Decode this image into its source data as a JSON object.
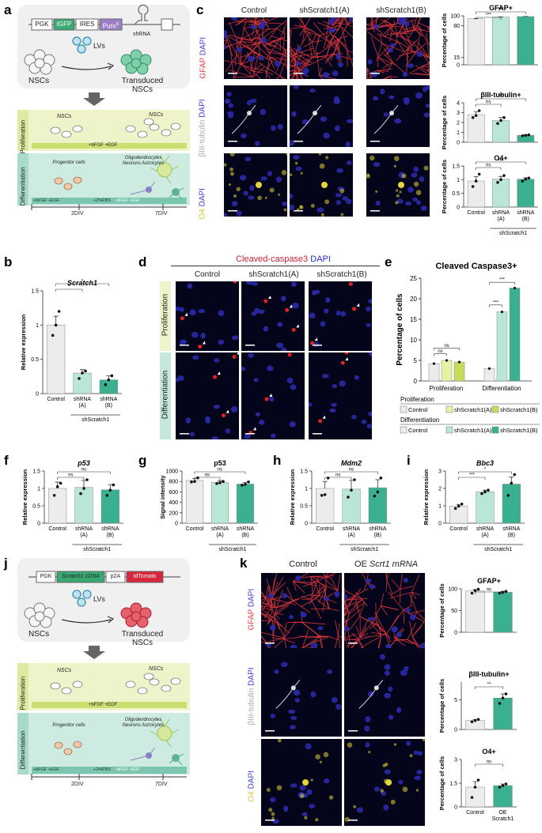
{
  "panels": {
    "a": "a",
    "b": "b",
    "c": "c",
    "d": "d",
    "e": "e",
    "f": "f",
    "g": "g",
    "h": "h",
    "i": "i",
    "j": "j",
    "k": "k"
  },
  "a": {
    "construct": [
      "PGK",
      "tGFP",
      "IRES",
      "Puro",
      "shRNA"
    ],
    "puro_sup": "R",
    "lvs": "LVs",
    "nscs": "NSCs",
    "transduced": "Transduced NSCs",
    "proliferation": "Proliferation",
    "nscs_label": "NSCs",
    "prolif_bar": "+bFGF +EGF",
    "differentiation": "Differentiation",
    "progenitor": "Progenitor cells",
    "mature": "Oligodendrocytes Neurons Astrocytes",
    "diff_bar_left": "+bFGF +EGF",
    "diff_bar_mid": "+2%FBS",
    "diff_bar_right": "-bFGF -EGF",
    "div2": "2DIV",
    "div7": "7DIV",
    "colors": {
      "tgfp": "#3aa872",
      "puro": "#9b7fc8",
      "prolif_bg": "#eef3c9",
      "diff_bg": "#b9e3d6",
      "bar": "#c9df6f",
      "diffbar": "#7cc6b0",
      "nsc": "#e9e9e9",
      "trans": "#74c6a2"
    }
  },
  "b": {
    "title": "Scratch1",
    "ylabel": "Relative expression",
    "groups": [
      "Control",
      "shRNA (A)",
      "shRNA (B)"
    ],
    "group_label": "shScratch1",
    "sig": [
      "*",
      "*"
    ]
  },
  "c": {
    "cols": [
      "Control",
      "shScratch1(A)",
      "shScratch1(B)"
    ],
    "rows": [
      {
        "marker": "GFAP",
        "dapi": "DAPI",
        "color": "#e8383d"
      },
      {
        "marker": "βIII-tubulin",
        "dapi": "DAPI",
        "color": "#b9b9b9"
      },
      {
        "marker": "O4",
        "dapi": "DAPI",
        "color": "#e3d33c"
      }
    ],
    "charts": [
      {
        "title": "GFAP+",
        "ylabel": "Percentage of cells",
        "sig": [
          "***",
          "***"
        ]
      },
      {
        "title": "βIII-tubulin+",
        "ylabel": "Percentage of cells",
        "sig": [
          "ns",
          "**"
        ]
      },
      {
        "title": "O4+",
        "ylabel": "Percentage of cells",
        "sig": [
          "ns",
          "ns"
        ]
      }
    ],
    "xlabels": [
      "Control",
      "shRNA (A)",
      "shRNA (B)"
    ],
    "group_label": "shScratch1"
  },
  "d": {
    "title_red": "Cleaved-caspase3",
    "title_blue": "DAPI",
    "cols": [
      "Control",
      "shScratch1(A)",
      "shScratch1(B)"
    ],
    "rows": [
      "Proliferation",
      "Differentiation"
    ]
  },
  "e": {
    "title": "Cleaved Caspase3+",
    "ylabel": "Percentage of cells",
    "groups": [
      "Proliferation",
      "Differentiation"
    ],
    "sig": [
      "ns",
      "ns",
      "***",
      "***"
    ],
    "legend_prolif": "Proliferation",
    "legend_diff": "Differentiation",
    "legend_items": [
      "Control",
      "shScratch1(A)",
      "shScratch1(B)"
    ]
  },
  "f": {
    "title": "p53",
    "ylabel": "Relative expression",
    "groups": [
      "Control",
      "shRNA (A)",
      "shRNA (B)"
    ],
    "group_label": "shScratch1",
    "sig": [
      "ns",
      "ns"
    ]
  },
  "g": {
    "title": "p53",
    "ylabel": "Signal intensity",
    "groups": [
      "Control",
      "shRNA (A)",
      "shRNA (B)"
    ],
    "group_label": "shScratch1",
    "sig": [
      "ns",
      "ns"
    ]
  },
  "h": {
    "title": "Mdm2",
    "ylabel": "Relative expression",
    "groups": [
      "Control",
      "shRNA (A)",
      "shRNA (B)"
    ],
    "group_label": "shScratch1",
    "sig": [
      "ns",
      "ns"
    ]
  },
  "i": {
    "title": "Bbc3",
    "ylabel": "Relative expression",
    "groups": [
      "Control",
      "shRNA (A)",
      "shRNA (B)"
    ],
    "group_label": "shScratch1",
    "sig": [
      "***",
      "*"
    ]
  },
  "j": {
    "construct": [
      "PGK",
      "Scratch1 cDNA",
      "p2A",
      "tdTomato"
    ],
    "lvs": "LVs",
    "nscs": "NSCs",
    "transduced": "Transduced NSCs",
    "proliferation": "Proliferation",
    "nscs_label": "NSCs",
    "prolif_bar": "+bFGF +EGF",
    "differentiation": "Differentiation",
    "progenitor": "Progenitor cells",
    "mature": "Oligodendrocytes Neurons Astrocytes",
    "diff_bar_left": "+bFGF +EGF",
    "diff_bar_mid": "+2%FBS",
    "diff_bar_right": "-bFGF -EGF",
    "div2": "2DIV",
    "div7": "7DIV"
  },
  "k": {
    "cols": [
      "Control",
      "OE"
    ],
    "oe_italic": "Scrt1 mRNA",
    "rows": [
      {
        "marker": "GFAP",
        "dapi": "DAPI",
        "color": "#e8383d"
      },
      {
        "marker": "βIII-tubulin",
        "dapi": "DAPI",
        "color": "#b9b9b9"
      },
      {
        "marker": "O4",
        "dapi": "DAPI",
        "color": "#e3d33c"
      }
    ],
    "charts": [
      {
        "title": "GFAP+",
        "ylabel": "Percentage of cells",
        "sig": [
          "ns"
        ]
      },
      {
        "title": "βIII-tubulin+",
        "ylabel": "Percentage of cells",
        "sig": [
          "**"
        ]
      },
      {
        "title": "O4+",
        "ylabel": "Percentage of cells",
        "sig": [
          "ns"
        ]
      }
    ],
    "xlabels": [
      "Control",
      "OE Scratch1"
    ]
  },
  "chart_data": [
    {
      "id": "b",
      "type": "bar",
      "categories": [
        "Control",
        "shRNA (A)",
        "shRNA (B)"
      ],
      "values": [
        1.0,
        0.3,
        0.2
      ],
      "errors": [
        0.13,
        0.05,
        0.06
      ],
      "points": [
        [
          0.85,
          1.0,
          1.2
        ],
        [
          0.22,
          0.3,
          0.33
        ],
        [
          0.13,
          0.2,
          0.26
        ]
      ],
      "ylim": [
        0,
        1.5
      ],
      "yticks": [
        0,
        0.5,
        1.0,
        1.5
      ],
      "title": "Scratch1",
      "ylabel": "Relative expression",
      "colors": [
        "#ececec",
        "#b9e6d5",
        "#3ab090"
      ]
    },
    {
      "id": "c1",
      "type": "bar",
      "categories": [
        "Control",
        "shRNA (A)",
        "shRNA (B)"
      ],
      "values": [
        94,
        97.5,
        98.5
      ],
      "errors": [
        0.6,
        0.5,
        0.3
      ],
      "ylim": [
        0,
        100
      ],
      "yticks": [
        0,
        15,
        80,
        100
      ],
      "title": "GFAP+",
      "colors": [
        "#ececec",
        "#b9e6d5",
        "#3ab090"
      ]
    },
    {
      "id": "c2",
      "type": "bar",
      "categories": [
        "Control",
        "shRNA (A)",
        "shRNA (B)"
      ],
      "values": [
        2.8,
        2.2,
        0.7
      ],
      "errors": [
        0.3,
        0.3,
        0.06
      ],
      "points": [
        [
          2.5,
          2.7,
          3.2
        ],
        [
          1.9,
          2.2,
          2.5
        ],
        [
          0.65,
          0.7,
          0.75
        ]
      ],
      "ylim": [
        0,
        4
      ],
      "yticks": [
        0,
        1,
        2,
        3,
        4
      ],
      "title": "βIII-tubulin+",
      "colors": [
        "#ececec",
        "#b9e6d5",
        "#3ab090"
      ]
    },
    {
      "id": "c3",
      "type": "bar",
      "categories": [
        "Control",
        "shRNA (A)",
        "shRNA (B)"
      ],
      "values": [
        0.95,
        1.02,
        1.02
      ],
      "errors": [
        0.16,
        0.1,
        0.05
      ],
      "points": [
        [
          0.75,
          0.95,
          1.2
        ],
        [
          0.9,
          1.0,
          1.15
        ],
        [
          0.95,
          1.02,
          1.06
        ]
      ],
      "ylim": [
        0,
        1.5
      ],
      "yticks": [
        0,
        0.5,
        1.0,
        1.5
      ],
      "title": "O4+",
      "colors": [
        "#ececec",
        "#b9e6d5",
        "#3ab090"
      ]
    },
    {
      "id": "e",
      "type": "bar",
      "categories": [
        "Proliferation",
        "Differentiation"
      ],
      "series": [
        {
          "name": "Control",
          "values": [
            4.2,
            3.0
          ]
        },
        {
          "name": "shScratch1(A)",
          "values": [
            5.0,
            16.8
          ]
        },
        {
          "name": "shScratch1(B)",
          "values": [
            4.6,
            22.6
          ]
        }
      ],
      "ylim": [
        0,
        25
      ],
      "yticks": [
        0,
        5,
        10,
        15,
        20,
        25
      ],
      "title": "Cleaved Caspase3+",
      "ylabel": "Percentage of cells"
    },
    {
      "id": "f",
      "type": "bar",
      "categories": [
        "Control",
        "shRNA (A)",
        "shRNA (B)"
      ],
      "values": [
        1.0,
        1.03,
        0.96
      ],
      "errors": [
        0.18,
        0.2,
        0.15
      ],
      "points": [
        [
          0.8,
          1.05,
          1.15
        ],
        [
          0.85,
          1.0,
          1.25
        ],
        [
          0.8,
          0.95,
          1.1
        ]
      ],
      "ylim": [
        0,
        1.5
      ],
      "yticks": [
        0,
        0.5,
        1.0,
        1.5
      ],
      "title": "p53",
      "ylabel": "Relative expression",
      "colors": [
        "#ececec",
        "#b9e6d5",
        "#3ab090"
      ]
    },
    {
      "id": "g",
      "type": "bar",
      "categories": [
        "Control",
        "shRNA (A)",
        "shRNA (B)"
      ],
      "values": [
        820,
        780,
        750
      ],
      "errors": [
        40,
        35,
        30
      ],
      "points": [
        [
          790,
          800,
          870
        ],
        [
          760,
          775,
          800
        ],
        [
          730,
          745,
          790
        ]
      ],
      "ylim": [
        0,
        1000
      ],
      "yticks": [
        0,
        200,
        400,
        600,
        800,
        1000
      ],
      "title": "p53",
      "ylabel": "Signal intensity",
      "colors": [
        "#ececec",
        "#b9e6d5",
        "#3ab090"
      ]
    },
    {
      "id": "h",
      "type": "bar",
      "categories": [
        "Control",
        "shRNA (A)",
        "shRNA (B)"
      ],
      "values": [
        1.0,
        0.98,
        1.02
      ],
      "errors": [
        0.2,
        0.25,
        0.23
      ],
      "points": [
        [
          0.8,
          0.82,
          1.3
        ],
        [
          0.75,
          0.95,
          1.25
        ],
        [
          0.78,
          0.9,
          1.3
        ]
      ],
      "ylim": [
        0,
        1.5
      ],
      "yticks": [
        0,
        0.5,
        1.0,
        1.5
      ],
      "title": "Mdm2",
      "ylabel": "Relative expression",
      "colors": [
        "#ececec",
        "#b9e6d5",
        "#3ab090"
      ]
    },
    {
      "id": "i",
      "type": "bar",
      "categories": [
        "Control",
        "shRNA (A)",
        "shRNA (B)"
      ],
      "values": [
        0.98,
        1.8,
        2.25
      ],
      "errors": [
        0.1,
        0.1,
        0.4
      ],
      "points": [
        [
          0.85,
          0.98,
          1.1
        ],
        [
          1.7,
          1.8,
          1.9
        ],
        [
          1.6,
          2.3,
          2.8
        ]
      ],
      "ylim": [
        0,
        3
      ],
      "yticks": [
        0,
        1,
        2,
        3
      ],
      "title": "Bbc3",
      "ylabel": "Relative expression",
      "colors": [
        "#ececec",
        "#b9e6d5",
        "#3ab090"
      ]
    },
    {
      "id": "k1",
      "type": "bar",
      "categories": [
        "Control",
        "OE Scratch1"
      ],
      "values": [
        95,
        92
      ],
      "errors": [
        3,
        2
      ],
      "points": [
        [
          90,
          96,
          99
        ],
        [
          90,
          92,
          94
        ]
      ],
      "ylim": [
        0,
        100
      ],
      "yticks": [
        0,
        50,
        100
      ],
      "title": "GFAP+",
      "colors": [
        "#ececec",
        "#3ab090"
      ]
    },
    {
      "id": "k2",
      "type": "bar",
      "categories": [
        "Control",
        "OE Scratch1"
      ],
      "values": [
        1.5,
        5.3
      ],
      "errors": [
        0.2,
        0.7
      ],
      "points": [
        [
          1.3,
          1.5,
          1.7
        ],
        [
          4.4,
          5.3,
          6.0
        ]
      ],
      "ylim": [
        0,
        8
      ],
      "yticks": [
        0,
        5
      ],
      "title": "βIII-tubulin+",
      "colors": [
        "#ececec",
        "#3ab090"
      ]
    },
    {
      "id": "k3",
      "type": "bar",
      "categories": [
        "Control",
        "OE Scratch1"
      ],
      "values": [
        1.25,
        1.35
      ],
      "errors": [
        0.35,
        0.1
      ],
      "points": [
        [
          0.6,
          1.25,
          1.7
        ],
        [
          1.25,
          1.35,
          1.45
        ]
      ],
      "ylim": [
        0,
        3
      ],
      "yticks": [
        0,
        1.5,
        3
      ],
      "title": "O4+",
      "colors": [
        "#ececec",
        "#3ab090"
      ]
    }
  ]
}
